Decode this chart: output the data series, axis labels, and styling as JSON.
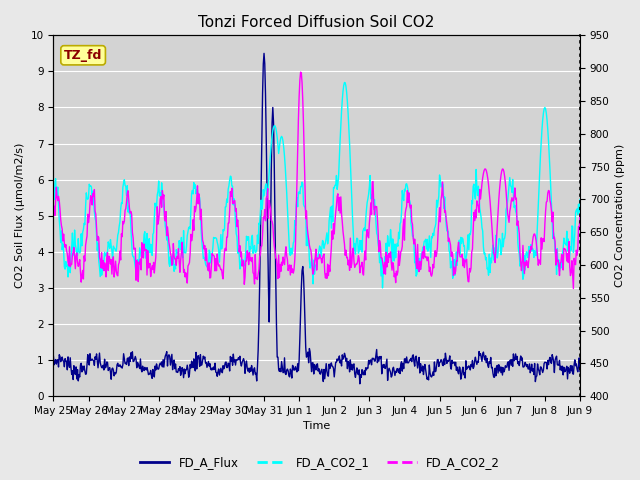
{
  "title": "Tonzi Forced Diffusion Soil CO2",
  "xlabel": "Time",
  "ylabel_left": "CO2 Soil Flux (μmol/m2/s)",
  "ylabel_right": "CO2 Concentration (ppm)",
  "ylim_left": [
    0.0,
    10.0
  ],
  "ylim_right": [
    400,
    950
  ],
  "yticks_left": [
    0.0,
    1.0,
    2.0,
    3.0,
    4.0,
    5.0,
    6.0,
    7.0,
    8.0,
    9.0,
    10.0
  ],
  "yticks_right": [
    400,
    450,
    500,
    550,
    600,
    650,
    700,
    750,
    800,
    850,
    900,
    950
  ],
  "x_tick_labels": [
    "May 25",
    "May 26",
    "May 27",
    "May 28",
    "May 29",
    "May 30",
    "May 31",
    "Jun 1",
    "Jun 2",
    "Jun 3",
    "Jun 4",
    "Jun 5",
    "Jun 6",
    "Jun 7",
    "Jun 8",
    "Jun 9"
  ],
  "color_flux": "#00008B",
  "color_co2_1": "#00FFFF",
  "color_co2_2": "#FF00FF",
  "label_flux": "FD_A_Flux",
  "label_co2_1": "FD_A_CO2_1",
  "label_co2_2": "FD_A_CO2_2",
  "annotation_text": "TZ_fd",
  "annotation_color": "#8B0000",
  "annotation_bg": "#FFFF99",
  "background_color": "#E8E8E8",
  "plot_bg": "#D3D3D3",
  "grid_color": "#FFFFFF",
  "linewidth_flux": 1.0,
  "linewidth_co2": 1.0,
  "title_fontsize": 11,
  "axis_fontsize": 8,
  "tick_fontsize": 7.5
}
